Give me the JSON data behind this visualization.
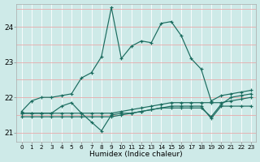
{
  "xlabel": "Humidex (Indice chaleur)",
  "background_color": "#ceeae8",
  "grid_color_h": "#e8aaaa",
  "grid_color_v": "#ffffff",
  "line_color": "#1a6b5e",
  "xlim": [
    -0.5,
    23.5
  ],
  "ylim": [
    20.75,
    24.65
  ],
  "yticks": [
    21,
    22,
    23,
    24
  ],
  "series": [
    {
      "x": [
        0,
        1,
        2,
        3,
        4,
        5,
        6,
        7,
        8,
        9,
        10,
        11,
        12,
        13,
        14,
        15,
        16,
        17,
        18,
        19,
        20,
        21,
        22,
        23
      ],
      "y": [
        21.6,
        21.9,
        22.0,
        22.0,
        22.05,
        22.1,
        22.55,
        22.7,
        23.15,
        24.55,
        23.1,
        23.45,
        23.6,
        23.55,
        24.1,
        24.15,
        23.75,
        23.1,
        22.8,
        21.9,
        22.05,
        22.1,
        22.15,
        22.2
      ]
    },
    {
      "x": [
        0,
        1,
        2,
        3,
        4,
        5,
        6,
        7,
        8,
        9,
        10,
        11,
        12,
        13,
        14,
        15,
        16,
        17,
        18,
        19,
        20,
        21,
        22,
        23
      ],
      "y": [
        21.55,
        21.55,
        21.55,
        21.55,
        21.75,
        21.85,
        21.55,
        21.3,
        21.05,
        21.5,
        21.55,
        21.55,
        21.6,
        21.65,
        21.7,
        21.7,
        21.7,
        21.7,
        21.7,
        21.45,
        21.8,
        22.0,
        22.05,
        22.1
      ]
    },
    {
      "x": [
        0,
        1,
        2,
        3,
        4,
        5,
        6,
        7,
        8,
        9,
        10,
        11,
        12,
        13,
        14,
        15,
        16,
        17,
        18,
        19,
        20,
        21,
        22,
        23
      ],
      "y": [
        21.55,
        21.55,
        21.55,
        21.55,
        21.55,
        21.55,
        21.55,
        21.55,
        21.55,
        21.55,
        21.6,
        21.65,
        21.7,
        21.75,
        21.8,
        21.85,
        21.85,
        21.85,
        21.85,
        21.85,
        21.85,
        21.9,
        21.95,
        22.0
      ]
    },
    {
      "x": [
        0,
        1,
        2,
        3,
        4,
        5,
        6,
        7,
        8,
        9,
        10,
        11,
        12,
        13,
        14,
        15,
        16,
        17,
        18,
        19,
        20,
        21,
        22,
        23
      ],
      "y": [
        21.45,
        21.45,
        21.45,
        21.45,
        21.45,
        21.45,
        21.45,
        21.45,
        21.45,
        21.45,
        21.5,
        21.55,
        21.6,
        21.65,
        21.7,
        21.75,
        21.75,
        21.75,
        21.75,
        21.4,
        21.75,
        21.75,
        21.75,
        21.75
      ]
    }
  ]
}
